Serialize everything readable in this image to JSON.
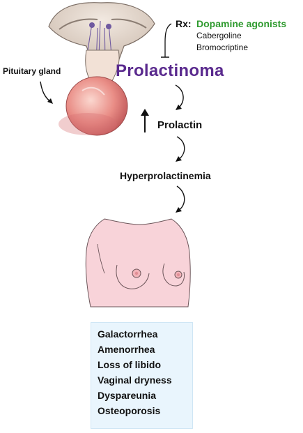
{
  "pituitary_label": "Pituitary gland",
  "rx": {
    "prefix": "Rx:",
    "title": "Dopamine agonists",
    "drugs": [
      "Cabergoline",
      "Bromocriptine"
    ]
  },
  "disease_title": "Prolactinoma",
  "hormone_label": "Prolactin",
  "condition_label": "Hyperprolactinemia",
  "symptoms": [
    "Galactorrhea",
    "Amenorrhea",
    "Loss of libido",
    "Vaginal dryness",
    "Dyspareunia",
    "Osteoporosis"
  ],
  "colors": {
    "title": "#5a2a8e",
    "rx_title": "#2e9a2e",
    "symptom_bg": "#e9f5fd",
    "skin": "#f8d3d9",
    "tumor": "#e07e7e"
  },
  "icons": [
    "inhibition-arrow-icon",
    "increase-arrow-icon",
    "curved-arrow-icon"
  ]
}
